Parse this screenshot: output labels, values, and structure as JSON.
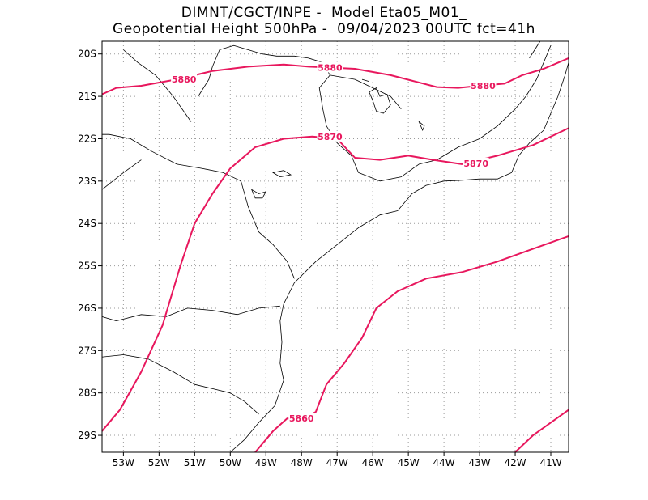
{
  "header": {
    "title_line1": "DIMNT/CGCT/INPE -  Model Eta05_M01_",
    "title_line2": "Geopotential Height 500hPa -  09/04/2023 00UTC fct=41h"
  },
  "colors": {
    "contour": "#e8175d",
    "coast": "#000000",
    "grid": "#9a9a9a",
    "frame": "#000000"
  },
  "map": {
    "lon_range": [
      -53.6,
      -40.5
    ],
    "lat_range": [
      -29.4,
      -19.7
    ],
    "lon_ticks": [
      {
        "value": -53,
        "label": "53W"
      },
      {
        "value": -52,
        "label": "52W"
      },
      {
        "value": -51,
        "label": "51W"
      },
      {
        "value": -50,
        "label": "50W"
      },
      {
        "value": -49,
        "label": "49W"
      },
      {
        "value": -48,
        "label": "48W"
      },
      {
        "value": -47,
        "label": "47W"
      },
      {
        "value": -46,
        "label": "46W"
      },
      {
        "value": -45,
        "label": "45W"
      },
      {
        "value": -44,
        "label": "44W"
      },
      {
        "value": -43,
        "label": "43W"
      },
      {
        "value": -42,
        "label": "42W"
      },
      {
        "value": -41,
        "label": "41W"
      }
    ],
    "lat_ticks": [
      {
        "value": -20,
        "label": "20S"
      },
      {
        "value": -21,
        "label": "21S"
      },
      {
        "value": -22,
        "label": "22S"
      },
      {
        "value": -23,
        "label": "23S"
      },
      {
        "value": -24,
        "label": "24S"
      },
      {
        "value": -25,
        "label": "25S"
      },
      {
        "value": -26,
        "label": "26S"
      },
      {
        "value": -27,
        "label": "27S"
      },
      {
        "value": -28,
        "label": "28S"
      },
      {
        "value": -29,
        "label": "29S"
      }
    ],
    "contours": [
      {
        "value": "5880",
        "points": [
          [
            -53.6,
            -20.95
          ],
          [
            -53.2,
            -20.8
          ],
          [
            -52.5,
            -20.75
          ],
          [
            -51.5,
            -20.6
          ],
          [
            -50.5,
            -20.4
          ],
          [
            -49.5,
            -20.3
          ],
          [
            -48.5,
            -20.25
          ],
          [
            -47.8,
            -20.3
          ],
          [
            -47.2,
            -20.32
          ],
          [
            -46.5,
            -20.35
          ],
          [
            -45.5,
            -20.5
          ],
          [
            -44.8,
            -20.65
          ],
          [
            -44.2,
            -20.78
          ],
          [
            -43.6,
            -20.8
          ],
          [
            -43.0,
            -20.75
          ],
          [
            -42.3,
            -20.7
          ],
          [
            -41.8,
            -20.5
          ],
          [
            -41.2,
            -20.35
          ],
          [
            -40.5,
            -20.1
          ]
        ],
        "labels": [
          [
            -51.3,
            -20.6
          ],
          [
            -47.2,
            -20.32
          ],
          [
            -42.9,
            -20.75
          ]
        ]
      },
      {
        "value": "5870",
        "points": [
          [
            -53.6,
            -28.9
          ],
          [
            -53.1,
            -28.4
          ],
          [
            -52.5,
            -27.5
          ],
          [
            -51.9,
            -26.4
          ],
          [
            -51.4,
            -25.0
          ],
          [
            -51.0,
            -24.0
          ],
          [
            -50.5,
            -23.3
          ],
          [
            -50.0,
            -22.7
          ],
          [
            -49.3,
            -22.2
          ],
          [
            -48.5,
            -22.0
          ],
          [
            -47.7,
            -21.95
          ],
          [
            -47.0,
            -22.0
          ],
          [
            -46.5,
            -22.45
          ],
          [
            -45.8,
            -22.5
          ],
          [
            -45.0,
            -22.4
          ],
          [
            -44.3,
            -22.5
          ],
          [
            -43.5,
            -22.6
          ],
          [
            -42.5,
            -22.4
          ],
          [
            -41.5,
            -22.15
          ],
          [
            -40.5,
            -21.75
          ]
        ],
        "labels": [
          [
            -47.2,
            -21.95
          ],
          [
            -43.1,
            -22.58
          ]
        ]
      },
      {
        "value": "5860",
        "points": [
          [
            -49.3,
            -29.4
          ],
          [
            -48.8,
            -28.9
          ],
          [
            -48.4,
            -28.6
          ],
          [
            -48.0,
            -28.62
          ],
          [
            -47.6,
            -28.45
          ],
          [
            -47.3,
            -27.8
          ],
          [
            -46.8,
            -27.3
          ],
          [
            -46.3,
            -26.7
          ],
          [
            -45.9,
            -26.0
          ],
          [
            -45.3,
            -25.6
          ],
          [
            -44.5,
            -25.3
          ],
          [
            -43.5,
            -25.15
          ],
          [
            -42.5,
            -24.9
          ],
          [
            -41.5,
            -24.6
          ],
          [
            -40.5,
            -24.3
          ]
        ],
        "labels": [
          [
            -48.0,
            -28.6
          ]
        ]
      },
      {
        "value": "",
        "points": [
          [
            -42.0,
            -29.4
          ],
          [
            -41.5,
            -29.0
          ],
          [
            -41.0,
            -28.7
          ],
          [
            -40.5,
            -28.4
          ]
        ],
        "labels": []
      }
    ],
    "boundaries": [
      [
        [
          -48.5,
          -25.9
        ],
        [
          -48.6,
          -26.3
        ],
        [
          -48.55,
          -26.8
        ],
        [
          -48.6,
          -27.3
        ],
        [
          -48.5,
          -27.7
        ],
        [
          -48.75,
          -28.3
        ],
        [
          -49.2,
          -28.7
        ],
        [
          -49.6,
          -29.1
        ],
        [
          -50.0,
          -29.4
        ]
      ],
      [
        [
          -48.5,
          -25.9
        ],
        [
          -48.2,
          -25.4
        ],
        [
          -47.6,
          -24.9
        ],
        [
          -47.0,
          -24.5
        ],
        [
          -46.4,
          -24.1
        ],
        [
          -45.8,
          -23.8
        ],
        [
          -45.3,
          -23.7
        ],
        [
          -44.9,
          -23.3
        ],
        [
          -44.5,
          -23.1
        ],
        [
          -44.0,
          -23.0
        ],
        [
          -43.5,
          -22.98
        ],
        [
          -43.0,
          -22.95
        ],
        [
          -42.5,
          -22.95
        ],
        [
          -42.1,
          -22.8
        ],
        [
          -41.9,
          -22.4
        ],
        [
          -41.6,
          -22.1
        ],
        [
          -41.2,
          -21.8
        ],
        [
          -41.0,
          -21.4
        ],
        [
          -40.8,
          -21.0
        ],
        [
          -40.6,
          -20.5
        ],
        [
          -40.5,
          -20.2
        ]
      ],
      [
        [
          -53.6,
          -26.2
        ],
        [
          -53.2,
          -26.3
        ],
        [
          -52.5,
          -26.15
        ],
        [
          -51.8,
          -26.2
        ],
        [
          -51.2,
          -26.0
        ],
        [
          -50.5,
          -26.05
        ],
        [
          -49.8,
          -26.15
        ],
        [
          -49.2,
          -26.0
        ],
        [
          -48.6,
          -25.95
        ]
      ],
      [
        [
          -53.6,
          -27.15
        ],
        [
          -53.0,
          -27.1
        ],
        [
          -52.3,
          -27.2
        ],
        [
          -51.6,
          -27.5
        ],
        [
          -51.0,
          -27.8
        ],
        [
          -50.5,
          -27.9
        ],
        [
          -50.0,
          -28.0
        ],
        [
          -49.6,
          -28.2
        ],
        [
          -49.2,
          -28.5
        ]
      ],
      [
        [
          -48.2,
          -25.3
        ],
        [
          -48.4,
          -24.9
        ],
        [
          -48.8,
          -24.5
        ],
        [
          -49.2,
          -24.2
        ],
        [
          -49.5,
          -23.6
        ],
        [
          -49.7,
          -23.0
        ],
        [
          -50.2,
          -22.8
        ],
        [
          -50.8,
          -22.7
        ],
        [
          -51.5,
          -22.6
        ],
        [
          -52.2,
          -22.3
        ],
        [
          -52.8,
          -22.0
        ],
        [
          -53.4,
          -21.9
        ],
        [
          -53.6,
          -21.9
        ]
      ],
      [
        [
          -53.6,
          -23.2
        ],
        [
          -53.3,
          -23.0
        ],
        [
          -53.0,
          -22.8
        ],
        [
          -52.5,
          -22.5
        ]
      ],
      [
        [
          -51.1,
          -21.6
        ],
        [
          -51.6,
          -21.0
        ],
        [
          -52.1,
          -20.5
        ],
        [
          -52.6,
          -20.2
        ],
        [
          -53.0,
          -19.9
        ]
      ],
      [
        [
          -50.9,
          -21.0
        ],
        [
          -50.6,
          -20.6
        ],
        [
          -50.5,
          -20.3
        ],
        [
          -50.3,
          -19.9
        ],
        [
          -49.9,
          -19.8
        ],
        [
          -49.5,
          -19.9
        ],
        [
          -49.1,
          -20.0
        ],
        [
          -48.7,
          -20.05
        ],
        [
          -48.2,
          -20.05
        ],
        [
          -47.8,
          -20.1
        ],
        [
          -47.4,
          -20.2
        ],
        [
          -47.2,
          -20.5
        ],
        [
          -47.5,
          -20.8
        ],
        [
          -47.4,
          -21.3
        ],
        [
          -47.3,
          -21.7
        ],
        [
          -47.0,
          -22.1
        ],
        [
          -46.6,
          -22.4
        ],
        [
          -46.4,
          -22.8
        ],
        [
          -45.8,
          -23.0
        ],
        [
          -45.2,
          -22.9
        ],
        [
          -44.7,
          -22.6
        ],
        [
          -44.2,
          -22.5
        ],
        [
          -43.6,
          -22.2
        ],
        [
          -43.0,
          -22.0
        ],
        [
          -42.5,
          -21.7
        ],
        [
          -42.0,
          -21.3
        ],
        [
          -41.7,
          -21.0
        ],
        [
          -41.4,
          -20.6
        ],
        [
          -41.2,
          -20.2
        ],
        [
          -41.0,
          -19.8
        ]
      ],
      [
        [
          -41.3,
          -19.7
        ],
        [
          -41.6,
          -20.1
        ]
      ],
      [
        [
          -47.2,
          -20.5
        ],
        [
          -46.5,
          -20.6
        ],
        [
          -46.0,
          -20.8
        ],
        [
          -45.5,
          -21.0
        ],
        [
          -45.2,
          -21.3
        ]
      ]
    ],
    "lakes": [
      [
        [
          -46.1,
          -20.9
        ],
        [
          -45.9,
          -20.8
        ],
        [
          -45.8,
          -21.0
        ],
        [
          -45.6,
          -20.95
        ],
        [
          -45.5,
          -21.2
        ],
        [
          -45.7,
          -21.4
        ],
        [
          -45.9,
          -21.35
        ],
        [
          -46.0,
          -21.1
        ]
      ],
      [
        [
          -48.8,
          -22.8
        ],
        [
          -48.5,
          -22.75
        ],
        [
          -48.3,
          -22.85
        ],
        [
          -48.6,
          -22.9
        ]
      ],
      [
        [
          -49.4,
          -23.2
        ],
        [
          -49.2,
          -23.3
        ],
        [
          -49.0,
          -23.25
        ],
        [
          -49.1,
          -23.4
        ],
        [
          -49.3,
          -23.4
        ]
      ],
      [
        [
          -44.7,
          -21.6
        ],
        [
          -44.55,
          -21.7
        ],
        [
          -44.6,
          -21.8
        ]
      ],
      [
        [
          -46.3,
          -20.6
        ],
        [
          -46.1,
          -20.65
        ]
      ]
    ]
  }
}
